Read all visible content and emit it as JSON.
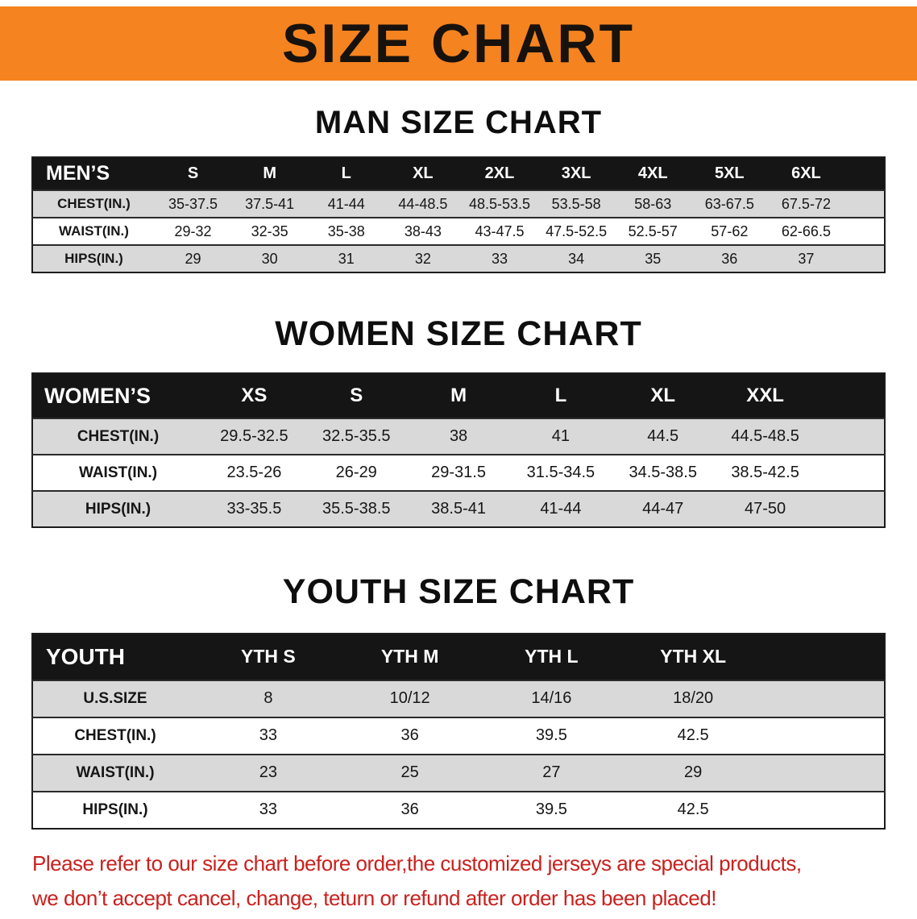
{
  "banner": {
    "title": "SIZE CHART"
  },
  "colors": {
    "banner_bg": "#f5831f",
    "header_bg": "#151515",
    "row_alt": "#d9d9d9",
    "footer_text": "#c9211e"
  },
  "sections": [
    {
      "id": "men",
      "heading": "MAN SIZE CHART",
      "table": {
        "label": "MEN’S",
        "columns": [
          "S",
          "M",
          "L",
          "XL",
          "2XL",
          "3XL",
          "4XL",
          "5XL",
          "6XL"
        ],
        "rows": [
          {
            "label": "CHEST(IN.)",
            "values": [
              "35-37.5",
              "37.5-41",
              "41-44",
              "44-48.5",
              "48.5-53.5",
              "53.5-58",
              "58-63",
              "63-67.5",
              "67.5-72"
            ]
          },
          {
            "label": "WAIST(IN.)",
            "values": [
              "29-32",
              "32-35",
              "35-38",
              "38-43",
              "43-47.5",
              "47.5-52.5",
              "52.5-57",
              "57-62",
              "62-66.5"
            ]
          },
          {
            "label": "HIPS(IN.)",
            "values": [
              "29",
              "30",
              "31",
              "32",
              "33",
              "34",
              "35",
              "36",
              "37"
            ]
          }
        ]
      }
    },
    {
      "id": "women",
      "heading": "WOMEN SIZE CHART",
      "table": {
        "label": "WOMEN’S",
        "columns": [
          "XS",
          "S",
          "M",
          "L",
          "XL",
          "XXL"
        ],
        "rows": [
          {
            "label": "CHEST(IN.)",
            "values": [
              "29.5-32.5",
              "32.5-35.5",
              "38",
              "41",
              "44.5",
              "44.5-48.5"
            ]
          },
          {
            "label": "WAIST(IN.)",
            "values": [
              "23.5-26",
              "26-29",
              "29-31.5",
              "31.5-34.5",
              "34.5-38.5",
              "38.5-42.5"
            ]
          },
          {
            "label": "HIPS(IN.)",
            "values": [
              "33-35.5",
              "35.5-38.5",
              "38.5-41",
              "41-44",
              "44-47",
              "47-50"
            ]
          }
        ]
      }
    },
    {
      "id": "youth",
      "heading": "YOUTH SIZE CHART",
      "table": {
        "label": "YOUTH",
        "columns": [
          "YTH S",
          "YTH M",
          "YTH L",
          "YTH XL"
        ],
        "rows": [
          {
            "label": "U.S.SIZE",
            "values": [
              "8",
              "10/12",
              "14/16",
              "18/20"
            ]
          },
          {
            "label": "CHEST(IN.)",
            "values": [
              "33",
              "36",
              "39.5",
              "42.5"
            ]
          },
          {
            "label": "WAIST(IN.)",
            "values": [
              "23",
              "25",
              "27",
              "29"
            ]
          },
          {
            "label": "HIPS(IN.)",
            "values": [
              "33",
              "36",
              "39.5",
              "42.5"
            ]
          }
        ]
      }
    }
  ],
  "footer": {
    "line1": "Please refer to our size chart before order,the customized jerseys are special products,",
    "line2": "we don’t accept cancel, change, teturn or refund after order has been placed!"
  }
}
